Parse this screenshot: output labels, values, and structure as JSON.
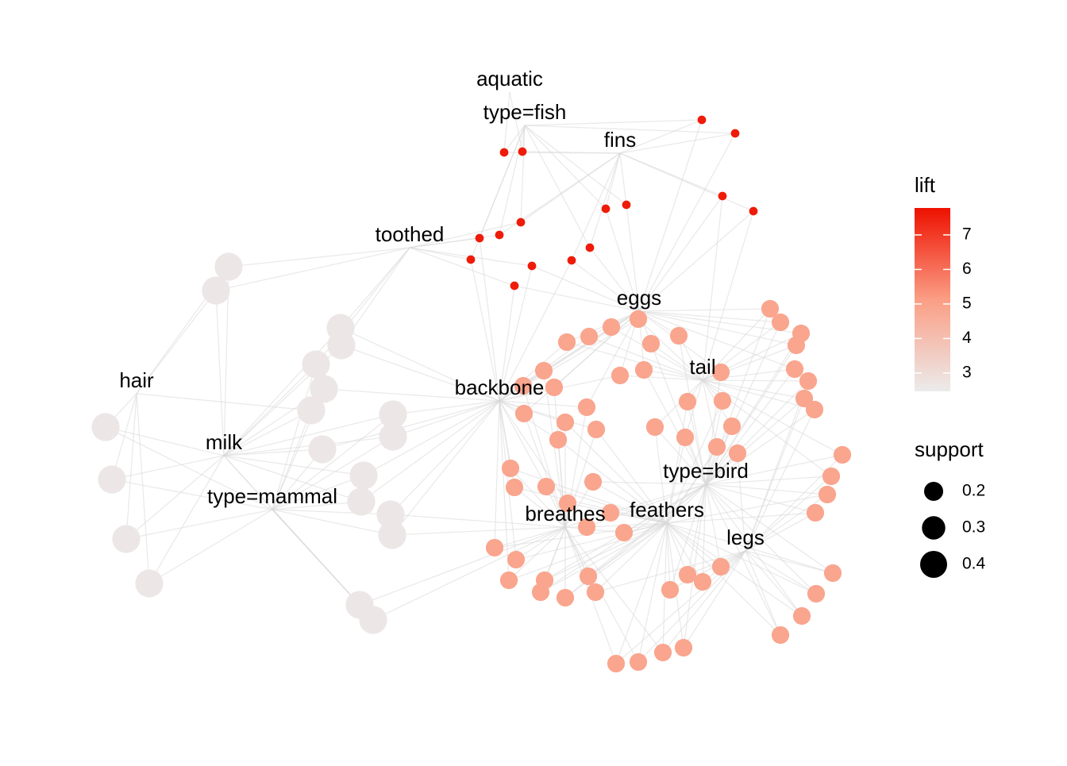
{
  "chart_data": {
    "type": "network",
    "items": [
      "aquatic",
      "type=fish",
      "fins",
      "toothed",
      "eggs",
      "hair",
      "backbone",
      "tail",
      "milk",
      "type=bird",
      "type=mammal",
      "breathes",
      "feathers",
      "legs"
    ],
    "rules": {
      "lift": [
        7.6,
        7.6,
        7.6,
        7.6,
        7.6,
        7.6,
        7.6,
        7.6,
        7.6,
        7.6,
        7.6,
        7.6,
        7.6,
        7.6,
        7.6,
        7.6,
        2.6,
        2.6,
        2.6,
        2.6,
        2.6,
        2.6,
        2.6,
        2.6,
        2.6,
        2.6,
        2.6,
        2.6,
        2.6,
        2.6,
        2.6,
        2.6,
        2.6,
        2.6,
        2.6,
        2.6,
        4.9,
        4.9,
        4.9,
        4.9,
        4.9,
        4.9,
        4.9,
        4.9,
        4.9,
        4.9,
        4.9,
        4.9,
        4.9,
        4.9,
        4.9,
        4.9,
        4.9,
        4.9,
        4.9,
        4.9,
        4.9,
        4.9,
        4.9,
        4.9,
        4.9,
        4.9,
        4.9,
        4.9,
        4.9,
        4.9,
        4.9,
        4.9,
        4.9,
        4.9,
        4.9,
        4.9,
        4.9,
        4.9,
        4.9,
        4.9,
        4.9,
        4.9,
        4.9,
        4.9,
        4.9,
        4.9,
        4.9,
        4.9,
        4.9,
        4.9,
        4.9,
        4.9,
        4.9,
        4.9,
        4.9,
        4.9,
        4.9,
        4.9,
        4.9,
        4.9,
        4.9,
        4.9,
        4.9,
        4.9
      ],
      "support": [
        0.04,
        0.04,
        0.04,
        0.04,
        0.04,
        0.04,
        0.04,
        0.04,
        0.04,
        0.04,
        0.04,
        0.04,
        0.04,
        0.04,
        0.04,
        0.04,
        0.43,
        0.43,
        0.43,
        0.43,
        0.43,
        0.43,
        0.43,
        0.43,
        0.43,
        0.43,
        0.43,
        0.43,
        0.43,
        0.43,
        0.43,
        0.43,
        0.43,
        0.43,
        0.43,
        0.43,
        0.17,
        0.17,
        0.17,
        0.17,
        0.17,
        0.17,
        0.17,
        0.17,
        0.17,
        0.17,
        0.17,
        0.17,
        0.17,
        0.17,
        0.17,
        0.17,
        0.17,
        0.17,
        0.17,
        0.17,
        0.17,
        0.17,
        0.17,
        0.17,
        0.17,
        0.17,
        0.17,
        0.17,
        0.17,
        0.17,
        0.17,
        0.17,
        0.17,
        0.17,
        0.17,
        0.17,
        0.17,
        0.17,
        0.17,
        0.17,
        0.17,
        0.17,
        0.17,
        0.17,
        0.17,
        0.17,
        0.17,
        0.17,
        0.17,
        0.17,
        0.17,
        0.17,
        0.17,
        0.17,
        0.17,
        0.17,
        0.17,
        0.17,
        0.17,
        0.17,
        0.17,
        0.17,
        0.17,
        0.17
      ]
    },
    "lift_legend": {
      "title": "lift",
      "lim": [
        2.47,
        7.78
      ],
      "ticks": [
        3,
        4,
        5,
        6,
        7
      ]
    },
    "support_legend": {
      "title": "support",
      "ticks": [
        0.2,
        0.3,
        0.4
      ]
    }
  }
}
